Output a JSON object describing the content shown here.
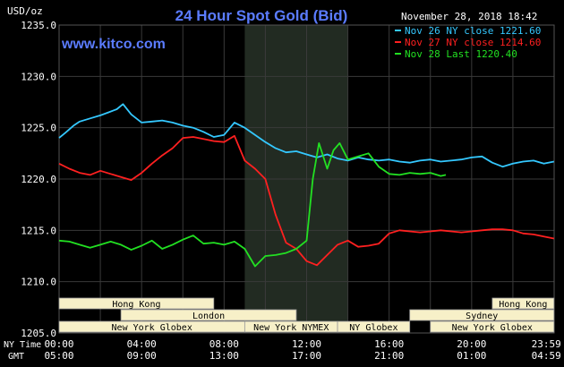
{
  "chart_data": {
    "type": "line",
    "title": "24 Hour Spot Gold (Bid)",
    "unit_label": "USD/oz",
    "site": "www.kitco.com",
    "timestamp": "November 28, 2018 18:42",
    "ylim": [
      1205.0,
      1235.0
    ],
    "y_ticks": [
      "1205.0",
      "1210.0",
      "1215.0",
      "1220.0",
      "1225.0",
      "1230.0",
      "1235.0"
    ],
    "x_ticks_ny": [
      "00:00",
      "04:00",
      "08:00",
      "12:00",
      "16:00",
      "20:00",
      "23:59"
    ],
    "x_ticks_gmt": [
      "05:00",
      "09:00",
      "13:00",
      "17:00",
      "21:00",
      "01:00",
      "04:59"
    ],
    "x_axis_label_ny": "NY Time",
    "x_axis_label_gmt": "GMT",
    "shaded_hours": [
      9.0,
      14.0
    ],
    "grid": true,
    "legend_position": "top-right",
    "colors": {
      "background": "#000000",
      "grid": "#3a3a3a",
      "axis_text": "#ffffff",
      "title": "#5b7cff",
      "shade": "#222b22",
      "session_fill": "#f7f0c8"
    },
    "series": [
      {
        "name": "Nov 26 NY close",
        "legend_label": "Nov 26 NY close 1221.60",
        "color": "#34c8ff",
        "x": [
          0,
          0.3,
          0.7,
          1,
          1.5,
          2,
          2.4,
          2.8,
          3.1,
          3.5,
          4,
          4.5,
          5,
          5.5,
          6,
          6.5,
          7,
          7.5,
          8,
          8.5,
          9,
          9.5,
          10,
          10.5,
          11,
          11.5,
          12,
          12.5,
          13,
          13.5,
          14,
          14.5,
          15,
          15.5,
          16,
          16.5,
          17,
          17.5,
          18,
          18.5,
          19,
          19.5,
          20,
          20.5,
          21,
          21.5,
          22,
          22.5,
          23,
          23.5,
          23.99
        ],
        "values": [
          1224.0,
          1224.5,
          1225.2,
          1225.6,
          1225.9,
          1226.2,
          1226.5,
          1226.8,
          1227.3,
          1226.3,
          1225.5,
          1225.6,
          1225.7,
          1225.5,
          1225.2,
          1225.0,
          1224.6,
          1224.1,
          1224.3,
          1225.5,
          1225.0,
          1224.3,
          1223.6,
          1223.0,
          1222.6,
          1222.7,
          1222.4,
          1222.1,
          1222.4,
          1222.0,
          1221.8,
          1222.1,
          1221.9,
          1221.8,
          1221.9,
          1221.7,
          1221.6,
          1221.8,
          1221.9,
          1221.7,
          1221.8,
          1221.9,
          1222.1,
          1222.2,
          1221.6,
          1221.2,
          1221.5,
          1221.7,
          1221.8,
          1221.5,
          1221.7
        ]
      },
      {
        "name": "Nov 27 NY close",
        "legend_label": "Nov 27 NY close 1214.60",
        "color": "#ff2020",
        "x": [
          0,
          0.5,
          1,
          1.5,
          2,
          2.5,
          3,
          3.5,
          4,
          4.5,
          5,
          5.5,
          6,
          6.5,
          7,
          7.5,
          8,
          8.5,
          9,
          9.5,
          10,
          10.5,
          11,
          11.5,
          12,
          12.5,
          13,
          13.5,
          14,
          14.5,
          15,
          15.5,
          16,
          16.5,
          17,
          17.5,
          18,
          18.5,
          19,
          19.5,
          20,
          20.5,
          21,
          21.5,
          22,
          22.5,
          23,
          23.5,
          23.99
        ],
        "values": [
          1221.5,
          1221.0,
          1220.6,
          1220.4,
          1220.8,
          1220.5,
          1220.2,
          1219.9,
          1220.6,
          1221.5,
          1222.3,
          1223.0,
          1224.0,
          1224.1,
          1223.9,
          1223.7,
          1223.6,
          1224.2,
          1221.8,
          1221.0,
          1220.0,
          1216.5,
          1213.8,
          1213.2,
          1212.0,
          1211.6,
          1212.6,
          1213.6,
          1214.0,
          1213.4,
          1213.5,
          1213.7,
          1214.7,
          1215.0,
          1214.9,
          1214.8,
          1214.9,
          1215.0,
          1214.9,
          1214.8,
          1214.9,
          1215.0,
          1215.1,
          1215.1,
          1215.0,
          1214.7,
          1214.6,
          1214.4,
          1214.2
        ]
      },
      {
        "name": "Nov 28 Last",
        "legend_label": "Nov 28 Last 1220.40",
        "color": "#22e022",
        "x": [
          0,
          0.5,
          1,
          1.5,
          2,
          2.5,
          3,
          3.5,
          4,
          4.5,
          5,
          5.5,
          6,
          6.5,
          7,
          7.5,
          8,
          8.5,
          9,
          9.5,
          10,
          10.5,
          11,
          11.5,
          12,
          12.3,
          12.6,
          13,
          13.3,
          13.6,
          14,
          14.5,
          15,
          15.5,
          16,
          16.5,
          17,
          17.5,
          18,
          18.5,
          18.75
        ],
        "values": [
          1214.0,
          1213.9,
          1213.6,
          1213.3,
          1213.6,
          1213.9,
          1213.6,
          1213.1,
          1213.5,
          1214.0,
          1213.2,
          1213.6,
          1214.1,
          1214.5,
          1213.7,
          1213.8,
          1213.6,
          1213.9,
          1213.2,
          1211.5,
          1212.5,
          1212.6,
          1212.8,
          1213.2,
          1214.0,
          1220.0,
          1223.5,
          1221.0,
          1222.8,
          1223.5,
          1221.9,
          1222.2,
          1222.5,
          1221.2,
          1220.5,
          1220.4,
          1220.6,
          1220.5,
          1220.6,
          1220.3,
          1220.4
        ]
      }
    ],
    "sessions": [
      {
        "name": "Hong Kong",
        "start": 0.0,
        "end": 7.5,
        "row": 1
      },
      {
        "name": "Hong Kong",
        "start": 21.0,
        "end": 23.99,
        "row": 1
      },
      {
        "name": "London",
        "start": 3.0,
        "end": 11.5,
        "row": 2
      },
      {
        "name": "Sydney",
        "start": 17.0,
        "end": 23.99,
        "row": 2
      },
      {
        "name": "New York Globex",
        "start": 0.0,
        "end": 9.0,
        "row": 3
      },
      {
        "name": "New York NYMEX",
        "start": 9.0,
        "end": 13.5,
        "row": 3
      },
      {
        "name": "NY Globex",
        "start": 13.5,
        "end": 17.0,
        "row": 3
      },
      {
        "name": "New York Globex",
        "start": 18.0,
        "end": 23.99,
        "row": 3
      }
    ]
  }
}
